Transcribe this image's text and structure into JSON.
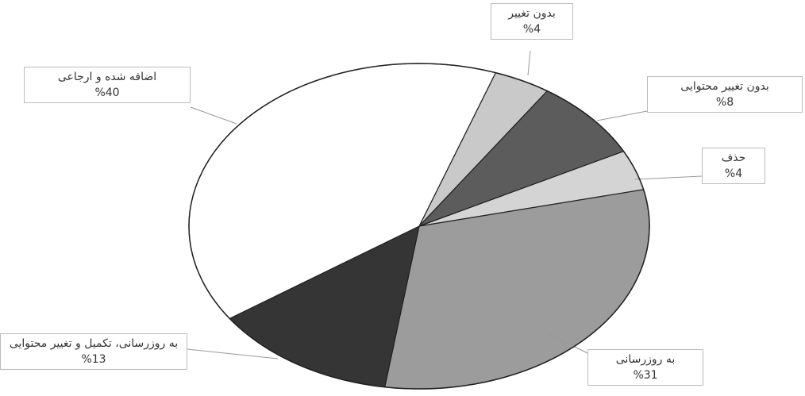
{
  "chart_data": {
    "type": "pie",
    "categories": [
      "بدون تغییر",
      "بدون تغییر محتوایی",
      "حذف",
      "به روزرسانی",
      "به روزرسانی، تکمیل و تغییر محتوایی",
      "اضافه شده و ارجاعی"
    ],
    "values": [
      4,
      8,
      4,
      31,
      13,
      40
    ],
    "value_labels": [
      "%4",
      "%8",
      "%4",
      "%31",
      "%13",
      "%40"
    ],
    "colors": [
      "#c9c9c9",
      "#5c5c5c",
      "#d4d4d4",
      "#9c9c9c",
      "#353535",
      "#ffffff"
    ]
  }
}
